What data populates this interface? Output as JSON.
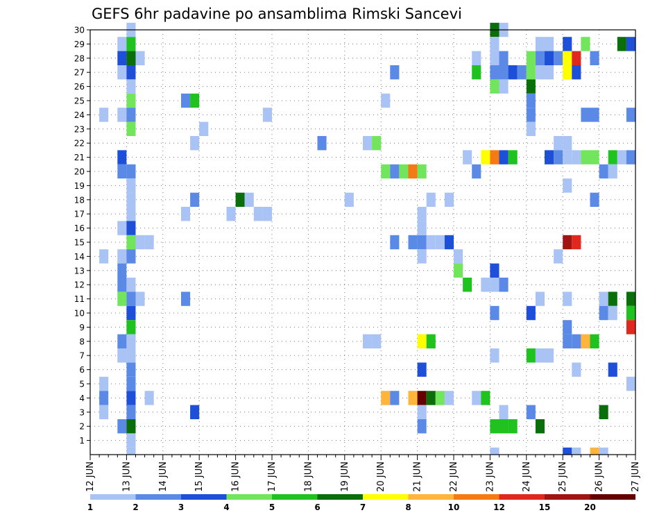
{
  "chart_data": {
    "type": "heatmap",
    "title": "GEFS 6hr padavine po ansamblima Rimski Sancevi",
    "xlabel": "",
    "ylabel": "",
    "x_ticks": [
      "12 JUN",
      "13 JUN",
      "14 JUN",
      "15 JUN",
      "16 JUN",
      "17 JUN",
      "18 JUN",
      "19 JUN",
      "20 JUN",
      "21 JUN",
      "22 JUN",
      "23 JUN",
      "24 JUN",
      "25 JUN",
      "26 JUN",
      "27 JUN"
    ],
    "y_ticks": [
      1,
      2,
      3,
      4,
      5,
      6,
      7,
      8,
      9,
      10,
      11,
      12,
      13,
      14,
      15,
      16,
      17,
      18,
      19,
      20,
      21,
      22,
      23,
      24,
      25,
      26,
      27,
      28,
      29,
      30
    ],
    "y_range": [
      0,
      30
    ],
    "steps_per_day": 4,
    "grid": true,
    "legend_position": "bottom",
    "legend": {
      "labels": [
        "1",
        "2",
        "3",
        "4",
        "5",
        "6",
        "7",
        "8",
        "10",
        "12",
        "15",
        "20"
      ],
      "colors": [
        "#a9c3f5",
        "#5b8ae6",
        "#1e4fd8",
        "#71e55b",
        "#1fc21f",
        "#0a6e0a",
        "#ffff00",
        "#ffb43c",
        "#f57a14",
        "#e0281e",
        "#a01414",
        "#640000"
      ]
    },
    "cells": [
      {
        "m": 30,
        "t": 4,
        "c": 0
      },
      {
        "m": 29,
        "t": 3,
        "c": 0
      },
      {
        "m": 29,
        "t": 4,
        "c": 4
      },
      {
        "m": 28,
        "t": 3,
        "c": 2
      },
      {
        "m": 28,
        "t": 4,
        "c": 5
      },
      {
        "m": 28,
        "t": 5,
        "c": 0
      },
      {
        "m": 27,
        "t": 3,
        "c": 0
      },
      {
        "m": 27,
        "t": 4,
        "c": 2
      },
      {
        "m": 26,
        "t": 4,
        "c": 0
      },
      {
        "m": 25,
        "t": 4,
        "c": 3
      },
      {
        "m": 24,
        "t": 1,
        "c": 0
      },
      {
        "m": 24,
        "t": 3,
        "c": 0
      },
      {
        "m": 24,
        "t": 4,
        "c": 1
      },
      {
        "m": 23,
        "t": 4,
        "c": 3
      },
      {
        "m": 21,
        "t": 3,
        "c": 2
      },
      {
        "m": 20,
        "t": 3,
        "c": 1
      },
      {
        "m": 20,
        "t": 4,
        "c": 1
      },
      {
        "m": 19,
        "t": 4,
        "c": 0
      },
      {
        "m": 18,
        "t": 4,
        "c": 0
      },
      {
        "m": 17,
        "t": 4,
        "c": 0
      },
      {
        "m": 16,
        "t": 3,
        "c": 0
      },
      {
        "m": 16,
        "t": 4,
        "c": 2
      },
      {
        "m": 15,
        "t": 4,
        "c": 3
      },
      {
        "m": 15,
        "t": 5,
        "c": 0
      },
      {
        "m": 15,
        "t": 6,
        "c": 0
      },
      {
        "m": 14,
        "t": 1,
        "c": 0
      },
      {
        "m": 14,
        "t": 3,
        "c": 0
      },
      {
        "m": 14,
        "t": 4,
        "c": 1
      },
      {
        "m": 13,
        "t": 3,
        "c": 1
      },
      {
        "m": 12,
        "t": 3,
        "c": 1
      },
      {
        "m": 12,
        "t": 4,
        "c": 0
      },
      {
        "m": 11,
        "t": 3,
        "c": 3
      },
      {
        "m": 11,
        "t": 4,
        "c": 1
      },
      {
        "m": 11,
        "t": 5,
        "c": 0
      },
      {
        "m": 10,
        "t": 4,
        "c": 2
      },
      {
        "m": 9,
        "t": 4,
        "c": 4
      },
      {
        "m": 8,
        "t": 3,
        "c": 1
      },
      {
        "m": 8,
        "t": 4,
        "c": 0
      },
      {
        "m": 7,
        "t": 3,
        "c": 0
      },
      {
        "m": 7,
        "t": 4,
        "c": 0
      },
      {
        "m": 6,
        "t": 4,
        "c": 1
      },
      {
        "m": 5,
        "t": 1,
        "c": 0
      },
      {
        "m": 5,
        "t": 4,
        "c": 1
      },
      {
        "m": 4,
        "t": 1,
        "c": 1
      },
      {
        "m": 4,
        "t": 4,
        "c": 2
      },
      {
        "m": 4,
        "t": 6,
        "c": 0
      },
      {
        "m": 3,
        "t": 1,
        "c": 0
      },
      {
        "m": 3,
        "t": 4,
        "c": 1
      },
      {
        "m": 2,
        "t": 3,
        "c": 1
      },
      {
        "m": 2,
        "t": 4,
        "c": 5
      },
      {
        "m": 1,
        "t": 4,
        "c": 0
      },
      {
        "m": 0,
        "t": 4,
        "c": 0
      },
      {
        "m": 25,
        "t": 10,
        "c": 1
      },
      {
        "m": 25,
        "t": 11,
        "c": 4
      },
      {
        "m": 23,
        "t": 12,
        "c": 0
      },
      {
        "m": 22,
        "t": 11,
        "c": 0
      },
      {
        "m": 17,
        "t": 10,
        "c": 0
      },
      {
        "m": 18,
        "t": 11,
        "c": 1
      },
      {
        "m": 11,
        "t": 10,
        "c": 1
      },
      {
        "m": 3,
        "t": 11,
        "c": 2
      },
      {
        "m": 18,
        "t": 16,
        "c": 5
      },
      {
        "m": 18,
        "t": 17,
        "c": 0
      },
      {
        "m": 17,
        "t": 15,
        "c": 0
      },
      {
        "m": 17,
        "t": 18,
        "c": 0
      },
      {
        "m": 17,
        "t": 19,
        "c": 0
      },
      {
        "m": 24,
        "t": 19,
        "c": 0
      },
      {
        "m": 22,
        "t": 25,
        "c": 1
      },
      {
        "m": 18,
        "t": 28,
        "c": 0
      },
      {
        "m": 22,
        "t": 30,
        "c": 0
      },
      {
        "m": 22,
        "t": 31,
        "c": 3
      },
      {
        "m": 25,
        "t": 32,
        "c": 0
      },
      {
        "m": 8,
        "t": 30,
        "c": 0
      },
      {
        "m": 8,
        "t": 31,
        "c": 0
      },
      {
        "m": 27,
        "t": 33,
        "c": 1
      },
      {
        "m": 20,
        "t": 32,
        "c": 3
      },
      {
        "m": 20,
        "t": 33,
        "c": 1
      },
      {
        "m": 20,
        "t": 34,
        "c": 3
      },
      {
        "m": 20,
        "t": 35,
        "c": 8
      },
      {
        "m": 20,
        "t": 36,
        "c": 3
      },
      {
        "m": 15,
        "t": 33,
        "c": 1
      },
      {
        "m": 15,
        "t": 35,
        "c": 1
      },
      {
        "m": 15,
        "t": 36,
        "c": 1
      },
      {
        "m": 15,
        "t": 37,
        "c": 0
      },
      {
        "m": 15,
        "t": 38,
        "c": 0
      },
      {
        "m": 15,
        "t": 39,
        "c": 2
      },
      {
        "m": 16,
        "t": 36,
        "c": 0
      },
      {
        "m": 17,
        "t": 36,
        "c": 0
      },
      {
        "m": 18,
        "t": 37,
        "c": 0
      },
      {
        "m": 18,
        "t": 39,
        "c": 0
      },
      {
        "m": 14,
        "t": 36,
        "c": 0
      },
      {
        "m": 14,
        "t": 40,
        "c": 0
      },
      {
        "m": 13,
        "t": 40,
        "c": 3
      },
      {
        "m": 12,
        "t": 41,
        "c": 4
      },
      {
        "m": 8,
        "t": 36,
        "c": 6
      },
      {
        "m": 8,
        "t": 37,
        "c": 4
      },
      {
        "m": 6,
        "t": 36,
        "c": 2
      },
      {
        "m": 4,
        "t": 32,
        "c": 7
      },
      {
        "m": 4,
        "t": 33,
        "c": 1
      },
      {
        "m": 4,
        "t": 35,
        "c": 7
      },
      {
        "m": 4,
        "t": 36,
        "c": 11
      },
      {
        "m": 4,
        "t": 37,
        "c": 5
      },
      {
        "m": 4,
        "t": 38,
        "c": 3
      },
      {
        "m": 4,
        "t": 39,
        "c": 0
      },
      {
        "m": 3,
        "t": 36,
        "c": 0
      },
      {
        "m": 2,
        "t": 36,
        "c": 1
      },
      {
        "m": 28,
        "t": 42,
        "c": 0
      },
      {
        "m": 27,
        "t": 42,
        "c": 4
      },
      {
        "m": 21,
        "t": 41,
        "c": 0
      },
      {
        "m": 21,
        "t": 43,
        "c": 6
      },
      {
        "m": 21,
        "t": 44,
        "c": 8
      },
      {
        "m": 21,
        "t": 45,
        "c": 2
      },
      {
        "m": 21,
        "t": 46,
        "c": 4
      },
      {
        "m": 20,
        "t": 42,
        "c": 1
      },
      {
        "m": 30,
        "t": 44,
        "c": 5
      },
      {
        "m": 30,
        "t": 45,
        "c": 0
      },
      {
        "m": 29,
        "t": 44,
        "c": 0
      },
      {
        "m": 28,
        "t": 44,
        "c": 0
      },
      {
        "m": 28,
        "t": 45,
        "c": 1
      },
      {
        "m": 27,
        "t": 44,
        "c": 1
      },
      {
        "m": 27,
        "t": 45,
        "c": 1
      },
      {
        "m": 27,
        "t": 46,
        "c": 2
      },
      {
        "m": 27,
        "t": 47,
        "c": 1
      },
      {
        "m": 26,
        "t": 44,
        "c": 3
      },
      {
        "m": 26,
        "t": 45,
        "c": 0
      },
      {
        "m": 13,
        "t": 44,
        "c": 2
      },
      {
        "m": 12,
        "t": 43,
        "c": 0
      },
      {
        "m": 12,
        "t": 44,
        "c": 0
      },
      {
        "m": 12,
        "t": 45,
        "c": 1
      },
      {
        "m": 10,
        "t": 44,
        "c": 1
      },
      {
        "m": 7,
        "t": 44,
        "c": 0
      },
      {
        "m": 4,
        "t": 42,
        "c": 0
      },
      {
        "m": 4,
        "t": 43,
        "c": 4
      },
      {
        "m": 3,
        "t": 45,
        "c": 0
      },
      {
        "m": 2,
        "t": 44,
        "c": 4
      },
      {
        "m": 2,
        "t": 45,
        "c": 4
      },
      {
        "m": 2,
        "t": 46,
        "c": 4
      },
      {
        "m": 0,
        "t": 44,
        "c": 0
      },
      {
        "m": 29,
        "t": 49,
        "c": 0
      },
      {
        "m": 29,
        "t": 50,
        "c": 0
      },
      {
        "m": 28,
        "t": 48,
        "c": 3
      },
      {
        "m": 28,
        "t": 49,
        "c": 1
      },
      {
        "m": 28,
        "t": 50,
        "c": 2
      },
      {
        "m": 27,
        "t": 48,
        "c": 3
      },
      {
        "m": 27,
        "t": 49,
        "c": 0
      },
      {
        "m": 27,
        "t": 50,
        "c": 0
      },
      {
        "m": 26,
        "t": 48,
        "c": 5
      },
      {
        "m": 25,
        "t": 48,
        "c": 1
      },
      {
        "m": 24,
        "t": 48,
        "c": 1
      },
      {
        "m": 23,
        "t": 48,
        "c": 0
      },
      {
        "m": 21,
        "t": 50,
        "c": 2
      },
      {
        "m": 22,
        "t": 51,
        "c": 0
      },
      {
        "m": 22,
        "t": 52,
        "c": 0
      },
      {
        "m": 21,
        "t": 51,
        "c": 1
      },
      {
        "m": 21,
        "t": 52,
        "c": 0
      },
      {
        "m": 14,
        "t": 51,
        "c": 0
      },
      {
        "m": 11,
        "t": 49,
        "c": 0
      },
      {
        "m": 10,
        "t": 48,
        "c": 2
      },
      {
        "m": 7,
        "t": 48,
        "c": 4
      },
      {
        "m": 7,
        "t": 49,
        "c": 0
      },
      {
        "m": 7,
        "t": 50,
        "c": 0
      },
      {
        "m": 3,
        "t": 48,
        "c": 1
      },
      {
        "m": 2,
        "t": 49,
        "c": 5
      },
      {
        "m": 29,
        "t": 52,
        "c": 2
      },
      {
        "m": 29,
        "t": 54,
        "c": 3
      },
      {
        "m": 28,
        "t": 51,
        "c": 1
      },
      {
        "m": 28,
        "t": 52,
        "c": 6
      },
      {
        "m": 28,
        "t": 53,
        "c": 9
      },
      {
        "m": 28,
        "t": 55,
        "c": 1
      },
      {
        "m": 27,
        "t": 52,
        "c": 6
      },
      {
        "m": 27,
        "t": 53,
        "c": 2
      },
      {
        "m": 21,
        "t": 53,
        "c": 0
      },
      {
        "m": 21,
        "t": 54,
        "c": 3
      },
      {
        "m": 21,
        "t": 55,
        "c": 3
      },
      {
        "m": 19,
        "t": 52,
        "c": 0
      },
      {
        "m": 18,
        "t": 55,
        "c": 1
      },
      {
        "m": 15,
        "t": 52,
        "c": 10
      },
      {
        "m": 15,
        "t": 53,
        "c": 9
      },
      {
        "m": 11,
        "t": 52,
        "c": 0
      },
      {
        "m": 9,
        "t": 52,
        "c": 1
      },
      {
        "m": 8,
        "t": 52,
        "c": 1
      },
      {
        "m": 8,
        "t": 53,
        "c": 1
      },
      {
        "m": 8,
        "t": 54,
        "c": 7
      },
      {
        "m": 8,
        "t": 55,
        "c": 4
      },
      {
        "m": 6,
        "t": 53,
        "c": 0
      },
      {
        "m": 0,
        "t": 52,
        "c": 2
      },
      {
        "m": 0,
        "t": 53,
        "c": 0
      },
      {
        "m": 0,
        "t": 55,
        "c": 7
      },
      {
        "m": 0,
        "t": 56,
        "c": 0
      },
      {
        "m": 29,
        "t": 58,
        "c": 5
      },
      {
        "m": 29,
        "t": 59,
        "c": 2
      },
      {
        "m": 24,
        "t": 54,
        "c": 1
      },
      {
        "m": 24,
        "t": 55,
        "c": 1
      },
      {
        "m": 21,
        "t": 57,
        "c": 4
      },
      {
        "m": 21,
        "t": 58,
        "c": 0
      },
      {
        "m": 21,
        "t": 59,
        "c": 1
      },
      {
        "m": 20,
        "t": 56,
        "c": 1
      },
      {
        "m": 20,
        "t": 57,
        "c": 0
      },
      {
        "m": 24,
        "t": 59,
        "c": 1
      },
      {
        "m": 11,
        "t": 56,
        "c": 0
      },
      {
        "m": 11,
        "t": 57,
        "c": 5
      },
      {
        "m": 11,
        "t": 59,
        "c": 5
      },
      {
        "m": 10,
        "t": 56,
        "c": 1
      },
      {
        "m": 10,
        "t": 57,
        "c": 0
      },
      {
        "m": 10,
        "t": 59,
        "c": 4
      },
      {
        "m": 9,
        "t": 59,
        "c": 9
      },
      {
        "m": 6,
        "t": 57,
        "c": 2
      },
      {
        "m": 5,
        "t": 59,
        "c": 0
      },
      {
        "m": 3,
        "t": 56,
        "c": 5
      }
    ]
  }
}
